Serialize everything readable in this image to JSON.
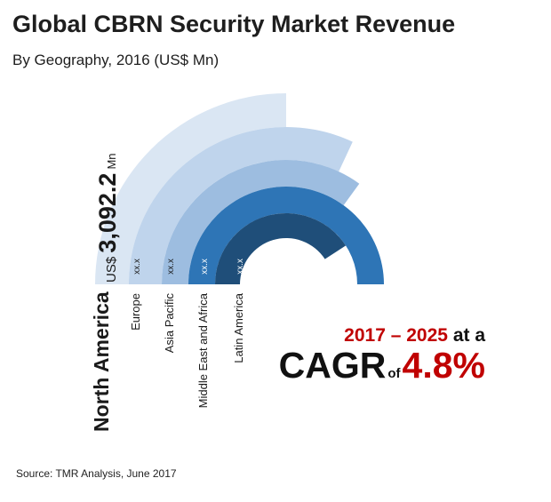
{
  "title": "Global CBRN Security Market Revenue",
  "subtitle": "By Geography, 2016 (US$ Mn)",
  "source": "Source: TMR Analysis, June 2017",
  "colors": {
    "north_america": "#dae6f3",
    "europe": "#bfd4ec",
    "asia_pacific": "#9dbde0",
    "middle_east_africa": "#2e75b6",
    "latin_america": "#1f4e79"
  },
  "chart_data": {
    "type": "radial-bar",
    "title": "Global CBRN Security Market Revenue",
    "subtitle": "By Geography, 2016 (US$ Mn)",
    "categories": [
      "North America",
      "Europe",
      "Asia Pacific",
      "Middle East and Africa",
      "Latin America"
    ],
    "value_labels": [
      "",
      "xx.x",
      "xx.x",
      "xx.x",
      "xx.x"
    ],
    "highlight": {
      "category": "North America",
      "prefix": "US$",
      "value": "3,092.2",
      "unit": "Mn"
    }
  },
  "cagr": {
    "years": "2017 – 2025",
    "at_a": "at a",
    "label": "CAGR",
    "of": "of",
    "value": "4.8%"
  }
}
